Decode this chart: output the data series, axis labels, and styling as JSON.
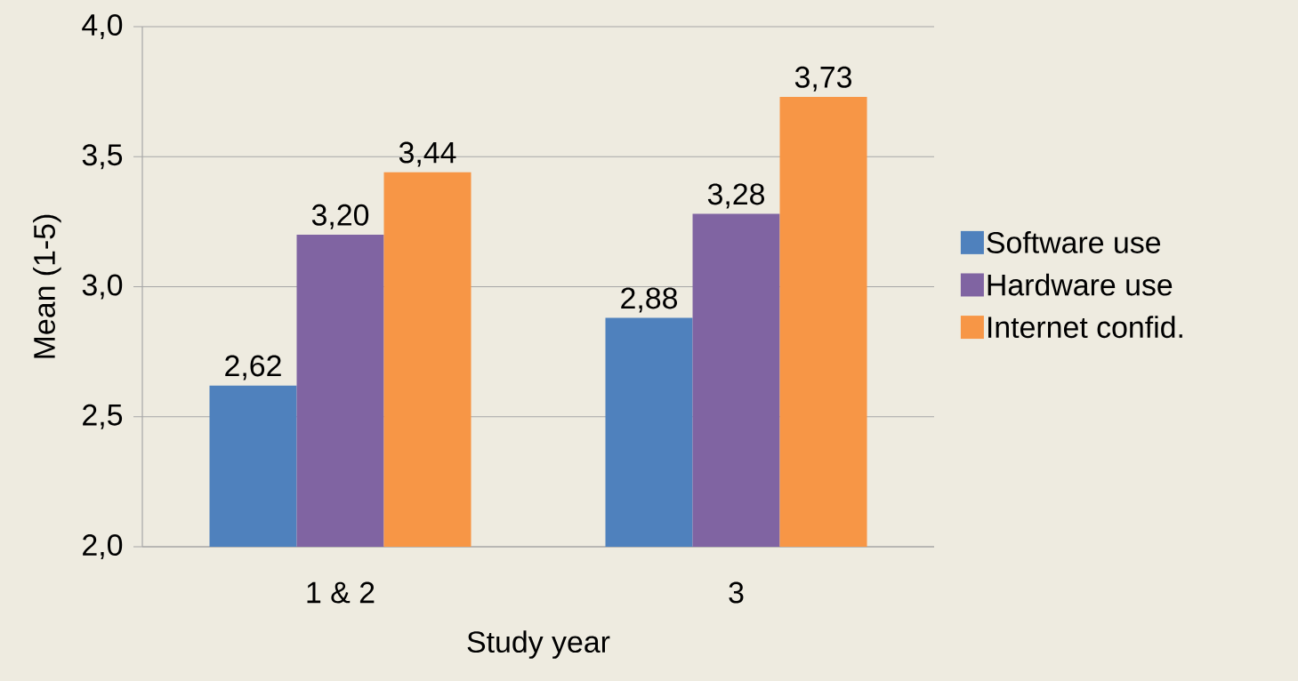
{
  "chart_data": {
    "type": "bar",
    "xlabel": "Study year",
    "ylabel": "Mean (1-5)",
    "categories": [
      "1 & 2",
      "3"
    ],
    "series": [
      {
        "name": "Software use",
        "color": "#4f81bd",
        "values": [
          2.62,
          2.88
        ],
        "value_labels": [
          "2,62",
          "2,88"
        ]
      },
      {
        "name": "Hardware use",
        "color": "#8064a2",
        "values": [
          3.2,
          3.28
        ],
        "value_labels": [
          "3,20",
          "3,28"
        ]
      },
      {
        "name": "Internet confid.",
        "color": "#f79646",
        "values": [
          3.44,
          3.73
        ],
        "value_labels": [
          "3,44",
          "3,73"
        ]
      }
    ],
    "ylim": [
      2,
      4
    ],
    "yticks": [
      {
        "value": 2,
        "label": "2,0"
      },
      {
        "value": 2.5,
        "label": "2,5"
      },
      {
        "value": 3,
        "label": "3,0"
      },
      {
        "value": 3.5,
        "label": "3,5"
      },
      {
        "value": 4,
        "label": "4,0"
      }
    ],
    "grid": "y",
    "legend": "right"
  }
}
